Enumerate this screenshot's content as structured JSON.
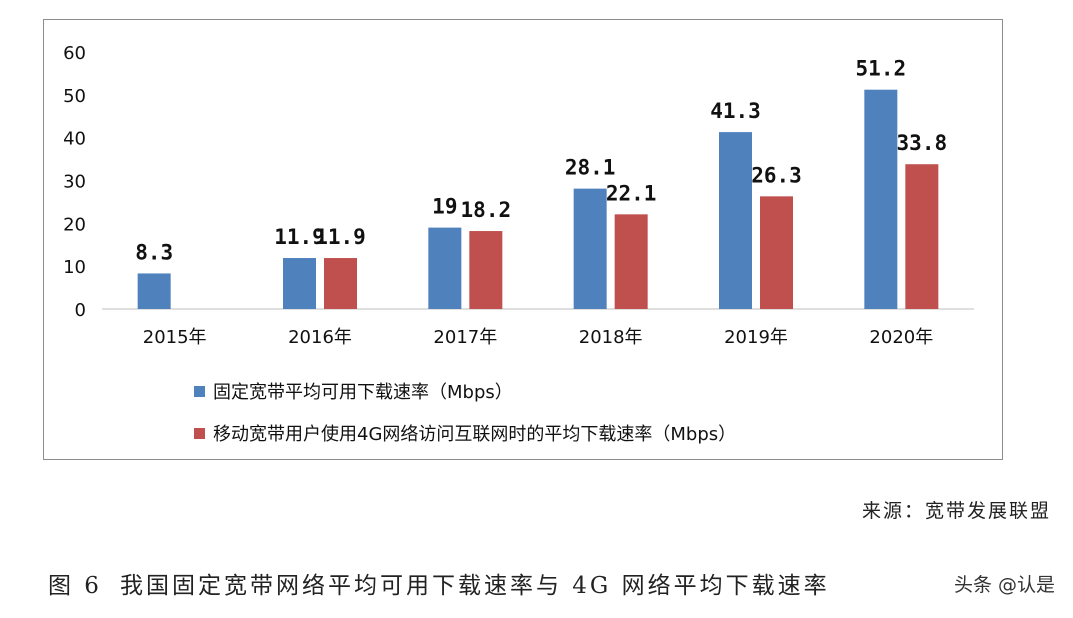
{
  "chart_data": {
    "type": "bar",
    "categories": [
      "2015年",
      "2016年",
      "2017年",
      "2018年",
      "2019年",
      "2020年"
    ],
    "series": [
      {
        "name": "固定宽带平均可用下载速率（Mbps）",
        "color": "#4f81bd",
        "values": [
          8.3,
          11.9,
          19,
          28.1,
          41.3,
          51.2
        ],
        "labels": [
          "8.3",
          "11.9",
          "19",
          "28.1",
          "41.3",
          "51.2"
        ]
      },
      {
        "name": "移动宽带用户使用4G网络访问互联网时的平均下载速率（Mbps）",
        "color": "#c0504d",
        "values": [
          null,
          11.9,
          18.2,
          22.1,
          26.3,
          33.8
        ],
        "labels": [
          "",
          "11.9",
          "18.2",
          "22.1",
          "26.3",
          "33.8"
        ]
      }
    ],
    "y_ticks": [
      "0",
      "10",
      "20",
      "30",
      "40",
      "50",
      "60"
    ],
    "ylim": [
      0,
      60
    ],
    "grid": false,
    "legend_position": "bottom-left"
  },
  "source": "来源：宽带发展联盟",
  "caption": {
    "number": "图 6",
    "text": "我国固定宽带网络平均可用下载速率与 4G 网络平均下载速率"
  },
  "watermark": "头条 @认是"
}
